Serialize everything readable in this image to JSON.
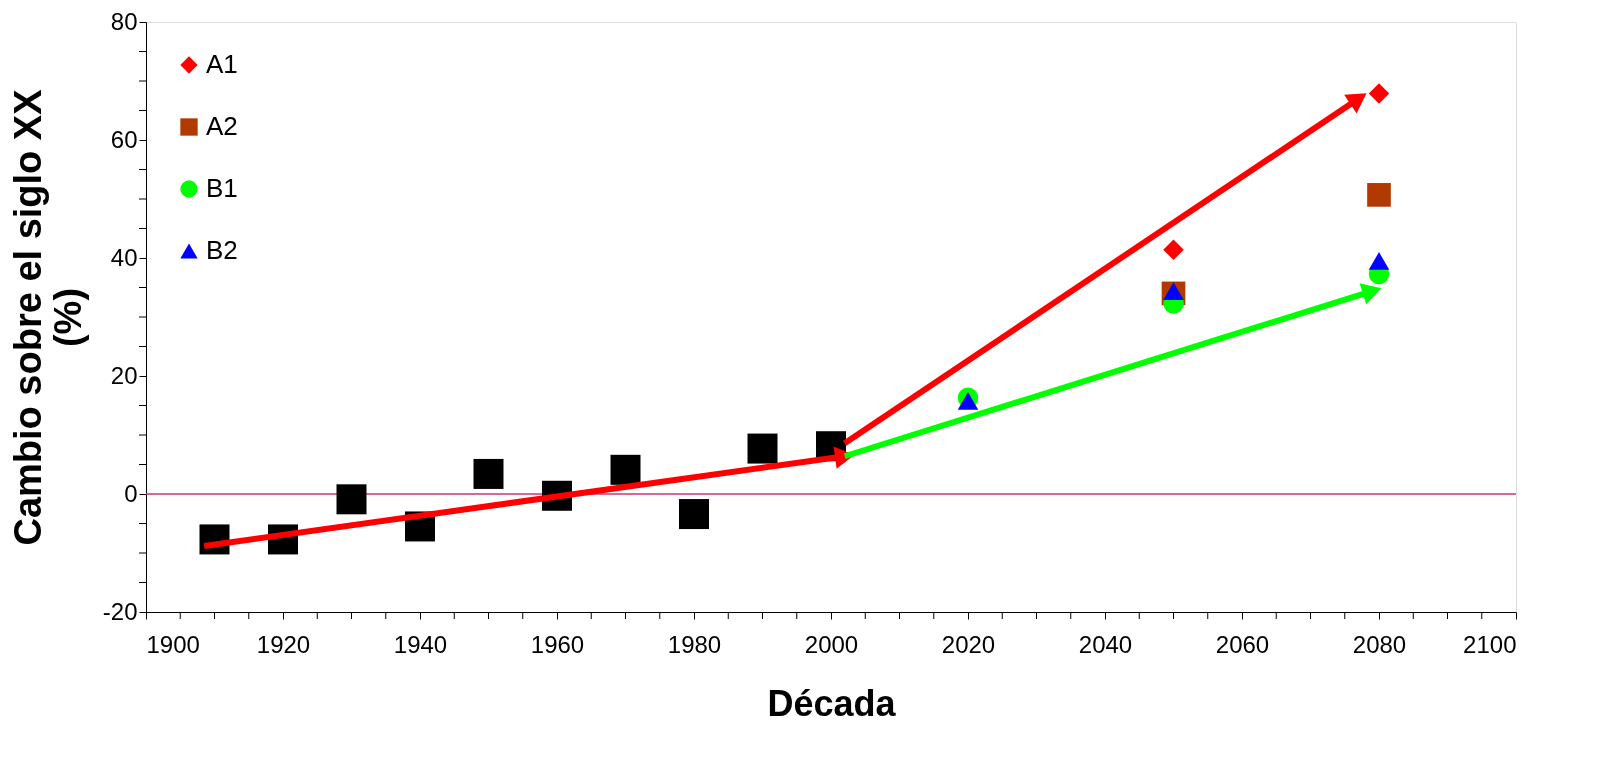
{
  "chart_data": {
    "type": "scatter",
    "xlabel": "Década",
    "ylabel": [
      "Cambio sobre el siglo XX",
      "(%)"
    ],
    "xlim": [
      1900,
      2100
    ],
    "ylim": [
      -20,
      80
    ],
    "xticks": [
      1900,
      {
        "value": 1905,
        "label": null
      },
      {
        "value": 1910,
        "label": null
      },
      {
        "value": 1915,
        "label": null
      },
      1920,
      {
        "value": 1925,
        "label": null
      },
      {
        "value": 1930,
        "label": null
      },
      {
        "value": 1935,
        "label": null
      },
      1940,
      {
        "value": 1945,
        "label": null
      },
      {
        "value": 1950,
        "label": null
      },
      {
        "value": 1955,
        "label": null
      },
      1960,
      {
        "value": 1965,
        "label": null
      },
      {
        "value": 1970,
        "label": null
      },
      {
        "value": 1975,
        "label": null
      },
      1980,
      {
        "value": 1985,
        "label": null
      },
      {
        "value": 1990,
        "label": null
      },
      {
        "value": 1995,
        "label": null
      },
      2000,
      {
        "value": 2005,
        "label": null
      },
      {
        "value": 2010,
        "label": null
      },
      {
        "value": 2015,
        "label": null
      },
      2020,
      {
        "value": 2025,
        "label": null
      },
      {
        "value": 2030,
        "label": null
      },
      {
        "value": 2035,
        "label": null
      },
      2040,
      {
        "value": 2045,
        "label": null
      },
      {
        "value": 2050,
        "label": null
      },
      {
        "value": 2055,
        "label": null
      },
      2060,
      {
        "value": 2065,
        "label": null
      },
      {
        "value": 2070,
        "label": null
      },
      {
        "value": 2075,
        "label": null
      },
      2080,
      {
        "value": 2085,
        "label": null
      },
      {
        "value": 2090,
        "label": null
      },
      {
        "value": 2095,
        "label": null
      },
      2100
    ],
    "yticks": [
      -20,
      {
        "value": -15,
        "label": null
      },
      {
        "value": -10,
        "label": null
      },
      {
        "value": -5,
        "label": null
      },
      0,
      {
        "value": 5,
        "label": null
      },
      {
        "value": 10,
        "label": null
      },
      {
        "value": 15,
        "label": null
      },
      20,
      {
        "value": 25,
        "label": null
      },
      {
        "value": 30,
        "label": null
      },
      {
        "value": 35,
        "label": null
      },
      40,
      {
        "value": 45,
        "label": null
      },
      {
        "value": 50,
        "label": null
      },
      {
        "value": 55,
        "label": null
      },
      60,
      {
        "value": 65,
        "label": null
      },
      {
        "value": 70,
        "label": null
      },
      {
        "value": 75,
        "label": null
      },
      80
    ],
    "grid": false,
    "legend": "top left",
    "ref_lines": [
      {
        "axis": "y",
        "value": 0,
        "color": "#cc3377"
      }
    ],
    "series": [
      {
        "color": "#000000",
        "marker": "square",
        "x": [
          1910,
          1920,
          1930,
          1940,
          1950,
          1960,
          1970,
          1980,
          1990,
          2000
        ],
        "values": [
          -7.7,
          -7.7,
          -0.9,
          -5.5,
          3.4,
          -0.3,
          4.1,
          -3.4,
          7.7,
          8.1
        ]
      },
      {
        "type": "line",
        "color": "#ff0000",
        "x": [
          1908.5,
          2002
        ],
        "values": [
          -8.8,
          6.4
        ]
      },
      {
        "type": "line",
        "color": "#ff0000",
        "x": [
          2002,
          2077
        ],
        "values": [
          8.6,
          67
        ]
      },
      {
        "type": "line",
        "color": "#00ff00",
        "x": [
          2002,
          2079
        ],
        "values": [
          6.4,
          34.4
        ]
      },
      {
        "name": "A1",
        "color": "#ff0000",
        "marker": "diamond",
        "x": [
          2050,
          2080
        ],
        "values": [
          41.4,
          67.9
        ]
      },
      {
        "name": "A2",
        "color": "#b03a00",
        "marker": "square",
        "x": [
          2050,
          2080
        ],
        "values": [
          34,
          50.7
        ]
      },
      {
        "name": "B1",
        "color": "#00ff00",
        "marker": "circle",
        "x": [
          2020,
          2050,
          2080
        ],
        "values": [
          16.3,
          32.3,
          37.3
        ]
      },
      {
        "name": "B2",
        "color": "#0000ff",
        "marker": "triangle",
        "x": [
          2020,
          2050,
          2080
        ],
        "values": [
          15.8,
          34.4,
          39.5
        ]
      }
    ]
  }
}
